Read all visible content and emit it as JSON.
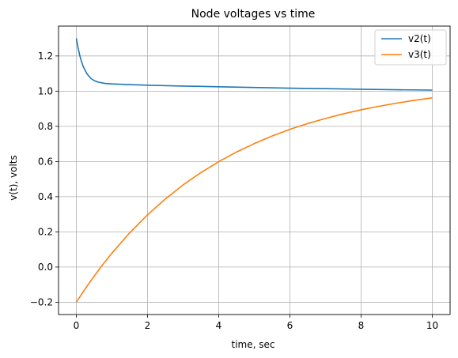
{
  "chart_data": {
    "type": "line",
    "title": "Node voltages vs time",
    "xlabel": "time, sec",
    "ylabel": "v(t), volts",
    "xlim": [
      -0.5,
      10.5
    ],
    "ylim": [
      -0.27,
      1.37
    ],
    "xticks": [
      0,
      2,
      4,
      6,
      8,
      10
    ],
    "yticks": [
      -0.2,
      0.0,
      0.2,
      0.4,
      0.6,
      0.8,
      1.0,
      1.2
    ],
    "xtick_labels": [
      "0",
      "2",
      "4",
      "6",
      "8",
      "10"
    ],
    "ytick_labels": [
      "−0.2",
      "0.0",
      "0.2",
      "0.4",
      "0.6",
      "0.8",
      "1.0",
      "1.2"
    ],
    "grid": true,
    "legend_position": "top-right",
    "series": [
      {
        "name": "v2(t)",
        "color": "#1f77b4",
        "x": [
          0,
          0.05,
          0.1,
          0.15,
          0.2,
          0.3,
          0.4,
          0.5,
          0.6,
          0.8,
          1.0,
          1.5,
          2,
          3,
          4,
          5,
          6,
          7,
          8,
          9,
          10
        ],
        "y": [
          1.3,
          1.245,
          1.2,
          1.165,
          1.137,
          1.098,
          1.074,
          1.06,
          1.052,
          1.044,
          1.041,
          1.037,
          1.034,
          1.029,
          1.025,
          1.021,
          1.017,
          1.014,
          1.011,
          1.008,
          1.006
        ]
      },
      {
        "name": "v3(t)",
        "color": "#ff7f0e",
        "x": [
          0,
          0.25,
          0.5,
          0.75,
          1.0,
          1.5,
          2,
          2.5,
          3,
          3.5,
          4,
          4.5,
          5,
          5.5,
          6,
          6.5,
          7,
          7.5,
          8,
          8.5,
          9,
          9.5,
          10
        ],
        "y": [
          -0.2,
          -0.123,
          -0.052,
          0.016,
          0.079,
          0.195,
          0.297,
          0.387,
          0.467,
          0.537,
          0.599,
          0.654,
          0.702,
          0.745,
          0.783,
          0.816,
          0.845,
          0.871,
          0.894,
          0.914,
          0.932,
          0.948,
          0.962
        ]
      }
    ]
  }
}
